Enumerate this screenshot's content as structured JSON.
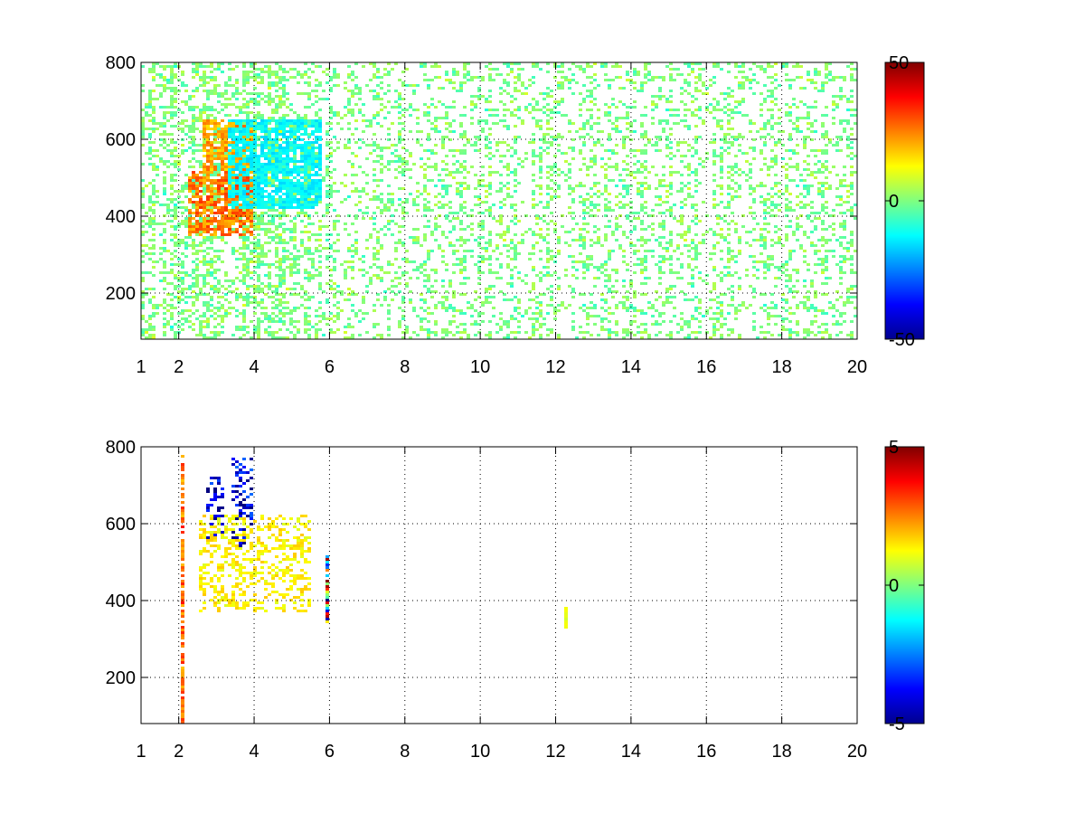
{
  "chart_data": [
    {
      "type": "heatmap",
      "title": "",
      "xlabel": "",
      "ylabel": "",
      "xlim": [
        1,
        20
      ],
      "ylim": [
        80,
        800
      ],
      "x_ticks": [
        1,
        2,
        4,
        6,
        8,
        10,
        12,
        14,
        16,
        18,
        20
      ],
      "x_tick_labels": [
        "1",
        "2",
        "4",
        "6",
        "8",
        "10",
        "12",
        "14",
        "16",
        "18",
        "20"
      ],
      "y_ticks": [
        200,
        400,
        600,
        800
      ],
      "y_tick_labels": [
        "200",
        "400",
        "600",
        "800"
      ],
      "grid": true,
      "colormap": "jet",
      "clim": [
        -50,
        50
      ],
      "colorbar": {
        "position": "right",
        "ticks": [
          -50,
          0,
          50
        ],
        "tick_labels": [
          "-50",
          "0",
          "50"
        ]
      },
      "features": [
        {
          "x": [
            2.2,
            4.0
          ],
          "y": [
            350,
            520
          ],
          "value": 30,
          "note": "high band, lower branch"
        },
        {
          "x": [
            2.6,
            4.0
          ],
          "y": [
            520,
            650
          ],
          "value": 25,
          "note": "high band, upper branch"
        },
        {
          "x": [
            3.3,
            5.8
          ],
          "y": [
            420,
            650
          ],
          "value": -15,
          "note": "negative diagonal streak"
        },
        {
          "x": [
            1.0,
            20.0
          ],
          "y": [
            80,
            800
          ],
          "value": 0,
          "note": "sparse near-zero scatter"
        }
      ]
    },
    {
      "type": "heatmap",
      "title": "",
      "xlabel": "",
      "ylabel": "",
      "xlim": [
        1,
        20
      ],
      "ylim": [
        80,
        800
      ],
      "x_ticks": [
        1,
        2,
        4,
        6,
        8,
        10,
        12,
        14,
        16,
        18,
        20
      ],
      "x_tick_labels": [
        "1",
        "2",
        "4",
        "6",
        "8",
        "10",
        "12",
        "14",
        "16",
        "18",
        "20"
      ],
      "y_ticks": [
        200,
        400,
        600,
        800
      ],
      "y_tick_labels": [
        "200",
        "400",
        "600",
        "800"
      ],
      "grid": true,
      "colormap": "jet",
      "clim": [
        -5,
        5
      ],
      "colorbar": {
        "position": "right",
        "ticks": [
          -5,
          0,
          5
        ],
        "tick_labels": [
          "-5",
          "0",
          "5"
        ]
      },
      "features": [
        {
          "x": [
            2.7,
            3.2
          ],
          "y": [
            560,
            720
          ],
          "value": -4.5,
          "note": "blue cluster"
        },
        {
          "x": [
            3.4,
            4.0
          ],
          "y": [
            540,
            770
          ],
          "value": -4.5,
          "note": "blue cluster"
        },
        {
          "x": [
            2.5,
            5.5
          ],
          "y": [
            370,
            620
          ],
          "value": 1.5,
          "note": "diagonal positive band"
        },
        {
          "x": [
            2.05,
            2.15
          ],
          "y": [
            80,
            780
          ],
          "value": 3,
          "note": "vertical line near x=2"
        },
        {
          "x": [
            5.9,
            6.0
          ],
          "y": [
            340,
            520
          ],
          "value": 0,
          "note": "mixed column at x=6"
        },
        {
          "x": [
            12.2,
            12.3
          ],
          "y": [
            330,
            380
          ],
          "value": 1,
          "note": "small patch"
        }
      ]
    }
  ]
}
